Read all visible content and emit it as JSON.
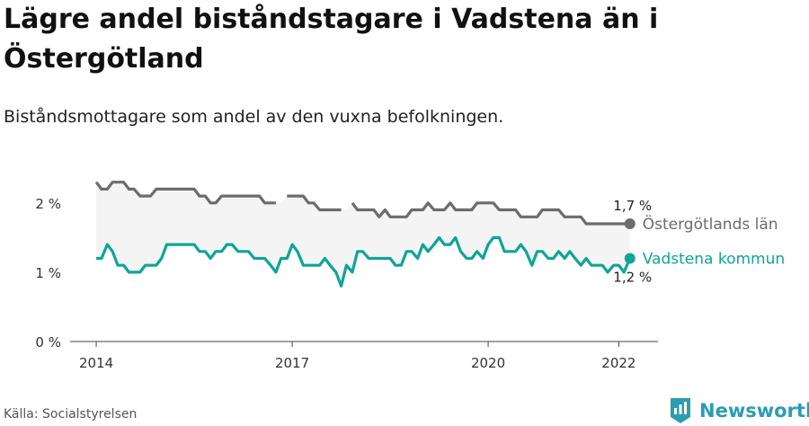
{
  "title": "Lägre andel biståndstagare i Vadstena än i Östergötland",
  "subtitle": "Biståndsmottagare som andel av den vuxna befolkningen.",
  "source": "Källa: Socialstyrelsen",
  "brand": "Newsworthy",
  "colors": {
    "lan": "#6b6b70",
    "kommun": "#0fa596",
    "band": "#f4f4f4",
    "axis": "#444444"
  },
  "chart_data": {
    "type": "line",
    "y_ticks": [
      "0 %",
      "1 %",
      "2 %"
    ],
    "y_tick_values": [
      0,
      1,
      2
    ],
    "x_ticks": [
      "2014",
      "2017",
      "2020",
      "2022"
    ],
    "x_tick_values": [
      2014.0,
      2017.0,
      2020.0,
      2022.0
    ],
    "xlim": [
      2013.6,
      2022.6
    ],
    "ylim": [
      0,
      2.4
    ],
    "series": [
      {
        "name": "Östergötlands län",
        "end_label": "1,7 %",
        "x": [
          2014.0,
          2014.08,
          2014.17,
          2014.25,
          2014.33,
          2014.42,
          2014.5,
          2014.58,
          2014.67,
          2014.75,
          2014.83,
          2014.92,
          2015.0,
          2015.08,
          2015.17,
          2015.25,
          2015.33,
          2015.42,
          2015.5,
          2015.58,
          2015.67,
          2015.75,
          2015.83,
          2015.92,
          2016.0,
          2016.08,
          2016.17,
          2016.25,
          2016.33,
          2016.42,
          2016.5,
          2016.58,
          2016.67,
          2016.75,
          2016.83,
          2016.92,
          2017.0,
          2017.08,
          2017.17,
          2017.25,
          2017.33,
          2017.42,
          2017.5,
          2017.58,
          2017.67,
          2017.75,
          2017.83,
          2017.92,
          2018.0,
          2018.08,
          2018.17,
          2018.25,
          2018.33,
          2018.42,
          2018.5,
          2018.58,
          2018.67,
          2018.75,
          2018.83,
          2018.92,
          2019.0,
          2019.08,
          2019.17,
          2019.25,
          2019.33,
          2019.42,
          2019.5,
          2019.58,
          2019.67,
          2019.75,
          2019.83,
          2019.92,
          2020.0,
          2020.08,
          2020.17,
          2020.25,
          2020.33,
          2020.42,
          2020.5,
          2020.58,
          2020.67,
          2020.75,
          2020.83,
          2020.92,
          2021.0,
          2021.08,
          2021.17,
          2021.25,
          2021.33,
          2021.42,
          2021.5,
          2021.58,
          2021.67,
          2021.75,
          2021.83,
          2021.92,
          2022.0,
          2022.08,
          2022.17
        ],
        "values": [
          2.3,
          2.2,
          2.2,
          2.3,
          2.3,
          2.3,
          2.2,
          2.2,
          2.1,
          2.1,
          2.1,
          2.2,
          2.2,
          2.2,
          2.2,
          2.2,
          2.2,
          2.2,
          2.2,
          2.1,
          2.1,
          2.0,
          2.0,
          2.1,
          2.1,
          2.1,
          2.1,
          2.1,
          2.1,
          2.1,
          2.1,
          2.0,
          2.0,
          2.0,
          null,
          2.1,
          2.1,
          2.1,
          2.1,
          2.0,
          2.0,
          1.9,
          1.9,
          1.9,
          1.9,
          1.9,
          null,
          2.0,
          1.9,
          1.9,
          1.9,
          1.9,
          1.8,
          1.9,
          1.8,
          1.8,
          1.8,
          1.8,
          1.9,
          1.9,
          1.9,
          2.0,
          1.9,
          1.9,
          1.9,
          2.0,
          1.9,
          1.9,
          1.9,
          1.9,
          2.0,
          2.0,
          2.0,
          2.0,
          1.9,
          1.9,
          1.9,
          1.9,
          1.8,
          1.8,
          1.8,
          1.8,
          1.9,
          1.9,
          1.9,
          1.9,
          1.8,
          1.8,
          1.8,
          1.8,
          1.7,
          1.7,
          1.7,
          1.7,
          1.7,
          1.7,
          1.7,
          1.7,
          1.7
        ]
      },
      {
        "name": "Vadstena kommun",
        "end_label": "1,2 %",
        "x": [
          2014.0,
          2014.08,
          2014.17,
          2014.25,
          2014.33,
          2014.42,
          2014.5,
          2014.58,
          2014.67,
          2014.75,
          2014.83,
          2014.92,
          2015.0,
          2015.08,
          2015.17,
          2015.25,
          2015.33,
          2015.42,
          2015.5,
          2015.58,
          2015.67,
          2015.75,
          2015.83,
          2015.92,
          2016.0,
          2016.08,
          2016.17,
          2016.25,
          2016.33,
          2016.42,
          2016.5,
          2016.58,
          2016.67,
          2016.75,
          2016.83,
          2016.92,
          2017.0,
          2017.08,
          2017.17,
          2017.25,
          2017.33,
          2017.42,
          2017.5,
          2017.58,
          2017.67,
          2017.75,
          2017.83,
          2017.92,
          2018.0,
          2018.08,
          2018.17,
          2018.25,
          2018.33,
          2018.42,
          2018.5,
          2018.58,
          2018.67,
          2018.75,
          2018.83,
          2018.92,
          2019.0,
          2019.08,
          2019.17,
          2019.25,
          2019.33,
          2019.42,
          2019.5,
          2019.58,
          2019.67,
          2019.75,
          2019.83,
          2019.92,
          2020.0,
          2020.08,
          2020.17,
          2020.25,
          2020.33,
          2020.42,
          2020.5,
          2020.58,
          2020.67,
          2020.75,
          2020.83,
          2020.92,
          2021.0,
          2021.08,
          2021.17,
          2021.25,
          2021.33,
          2021.42,
          2021.5,
          2021.58,
          2021.67,
          2021.75,
          2021.83,
          2021.92,
          2022.0,
          2022.08,
          2022.17
        ],
        "values": [
          1.2,
          1.2,
          1.4,
          1.3,
          1.1,
          1.1,
          1.0,
          1.0,
          1.0,
          1.1,
          1.1,
          1.1,
          1.2,
          1.4,
          1.4,
          1.4,
          1.4,
          1.4,
          1.4,
          1.3,
          1.3,
          1.2,
          1.3,
          1.3,
          1.4,
          1.4,
          1.3,
          1.3,
          1.3,
          1.2,
          1.2,
          1.2,
          1.1,
          1.0,
          1.2,
          1.2,
          1.4,
          1.3,
          1.1,
          1.1,
          1.1,
          1.1,
          1.2,
          1.1,
          1.0,
          0.8,
          1.1,
          1.0,
          1.3,
          1.3,
          1.2,
          1.2,
          1.2,
          1.2,
          1.2,
          1.1,
          1.1,
          1.3,
          1.3,
          1.2,
          1.4,
          1.3,
          1.4,
          1.5,
          1.4,
          1.4,
          1.5,
          1.3,
          1.2,
          1.2,
          1.3,
          1.2,
          1.4,
          1.5,
          1.5,
          1.3,
          1.3,
          1.3,
          1.4,
          1.3,
          1.1,
          1.3,
          1.3,
          1.2,
          1.2,
          1.3,
          1.2,
          1.3,
          1.2,
          1.1,
          1.2,
          1.1,
          1.1,
          1.1,
          1.0,
          1.1,
          1.1,
          1.0,
          1.2
        ]
      }
    ],
    "legend_placement": "line-end labels (right)",
    "grid": false
  }
}
